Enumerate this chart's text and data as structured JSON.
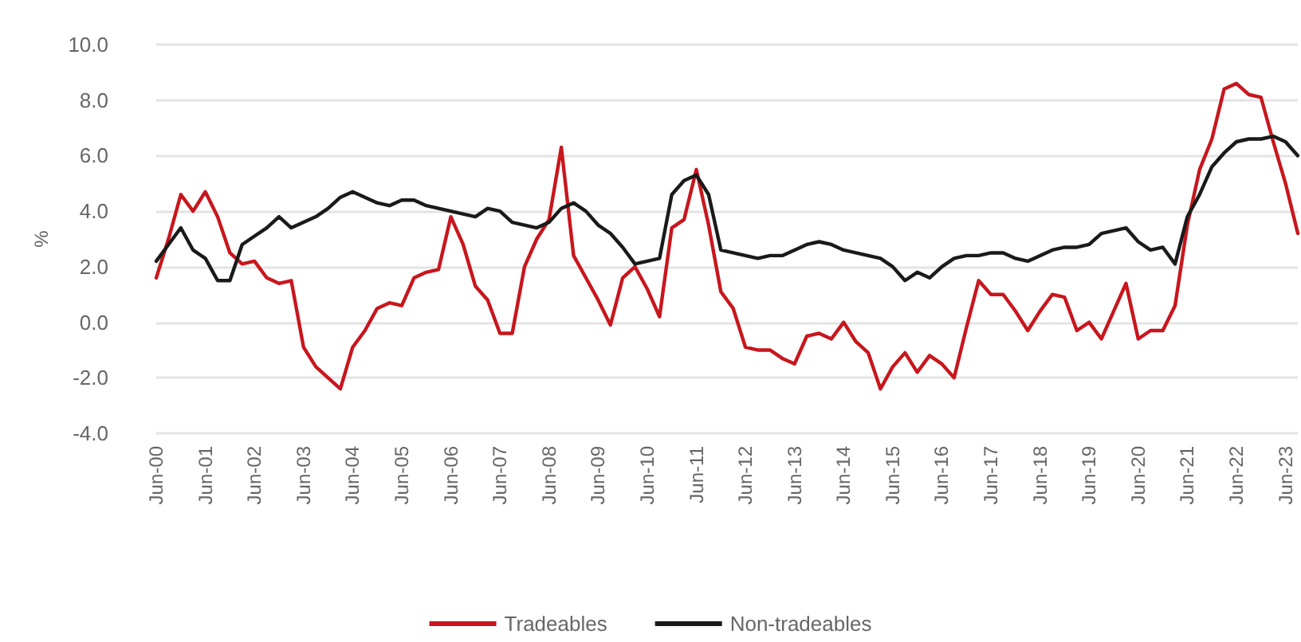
{
  "chart_data": {
    "type": "line",
    "ylabel": "%",
    "categories": [
      "Jun-00",
      null,
      null,
      null,
      "Jun-01",
      null,
      null,
      null,
      "Jun-02",
      null,
      null,
      null,
      "Jun-03",
      null,
      null,
      null,
      "Jun-04",
      null,
      null,
      null,
      "Jun-05",
      null,
      null,
      null,
      "Jun-06",
      null,
      null,
      null,
      "Jun-07",
      null,
      null,
      null,
      "Jun-08",
      null,
      null,
      null,
      "Jun-09",
      null,
      null,
      null,
      "Jun-10",
      null,
      null,
      null,
      "Jun-11",
      null,
      null,
      null,
      "Jun-12",
      null,
      null,
      null,
      "Jun-13",
      null,
      null,
      null,
      "Jun-14",
      null,
      null,
      null,
      "Jun-15",
      null,
      null,
      null,
      "Jun-16",
      null,
      null,
      null,
      "Jun-17",
      null,
      null,
      null,
      "Jun-18",
      null,
      null,
      null,
      "Jun-19",
      null,
      null,
      null,
      "Jun-20",
      null,
      null,
      null,
      "Jun-21",
      null,
      null,
      null,
      "Jun-22",
      null,
      null,
      null,
      "Jun-23",
      null
    ],
    "series": [
      {
        "name": "Tradeables",
        "color": "#c8161d",
        "values": [
          1.6,
          3.0,
          4.6,
          4.0,
          4.7,
          3.8,
          2.5,
          2.1,
          2.2,
          1.6,
          1.4,
          1.5,
          -0.9,
          -1.6,
          -2.0,
          -2.4,
          -0.9,
          -0.3,
          0.5,
          0.7,
          0.6,
          1.6,
          1.8,
          1.9,
          3.8,
          2.8,
          1.3,
          0.8,
          -0.4,
          -0.4,
          2.0,
          3.0,
          3.7,
          6.3,
          2.4,
          1.6,
          0.8,
          -0.1,
          1.6,
          2.0,
          1.2,
          0.2,
          3.4,
          3.7,
          5.5,
          3.5,
          1.1,
          0.5,
          -0.9,
          -1.0,
          -1.0,
          -1.3,
          -1.5,
          -0.5,
          -0.4,
          -0.6,
          0.0,
          -0.7,
          -1.1,
          -2.4,
          -1.6,
          -1.1,
          -1.8,
          -1.2,
          -1.5,
          -2.0,
          -0.2,
          1.5,
          1.0,
          1.0,
          0.4,
          -0.3,
          0.4,
          1.0,
          0.9,
          -0.3,
          0.0,
          -0.6,
          0.4,
          1.4,
          -0.6,
          -0.3,
          -0.3,
          0.6,
          3.5,
          5.5,
          6.6,
          8.4,
          8.6,
          8.2,
          8.1,
          6.5,
          5.0,
          3.2
        ]
      },
      {
        "name": "Non-tradeables",
        "color": "#1a1a1a",
        "values": [
          2.2,
          2.8,
          3.4,
          2.6,
          2.3,
          1.5,
          1.5,
          2.8,
          3.1,
          3.4,
          3.8,
          3.4,
          3.6,
          3.8,
          4.1,
          4.5,
          4.7,
          4.5,
          4.3,
          4.2,
          4.4,
          4.4,
          4.2,
          4.1,
          4.0,
          3.9,
          3.8,
          4.1,
          4.0,
          3.6,
          3.5,
          3.4,
          3.6,
          4.1,
          4.3,
          4.0,
          3.5,
          3.2,
          2.7,
          2.1,
          2.2,
          2.3,
          4.6,
          5.1,
          5.3,
          4.6,
          2.6,
          2.5,
          2.4,
          2.3,
          2.4,
          2.4,
          2.6,
          2.8,
          2.9,
          2.8,
          2.6,
          2.5,
          2.4,
          2.3,
          2.0,
          1.5,
          1.8,
          1.6,
          2.0,
          2.3,
          2.4,
          2.4,
          2.5,
          2.5,
          2.3,
          2.2,
          2.4,
          2.6,
          2.7,
          2.7,
          2.8,
          3.2,
          3.3,
          3.4,
          2.9,
          2.6,
          2.7,
          2.1,
          3.8,
          4.6,
          5.6,
          6.1,
          6.5,
          6.6,
          6.6,
          6.7,
          6.5,
          6.0
        ]
      }
    ],
    "ylim": [
      -4,
      10
    ],
    "yticks": [
      {
        "value": -4,
        "label": "-4.0"
      },
      {
        "value": -2,
        "label": "-2.0"
      },
      {
        "value": 0,
        "label": "0.0"
      },
      {
        "value": 2,
        "label": "2.0"
      },
      {
        "value": 4,
        "label": "4.0"
      },
      {
        "value": 6,
        "label": "6.0"
      },
      {
        "value": 8,
        "label": "8.0"
      },
      {
        "value": 10,
        "label": "10.0"
      }
    ],
    "grid": "y",
    "legend": "bottom",
    "marker": "none",
    "line_style": "solid"
  }
}
